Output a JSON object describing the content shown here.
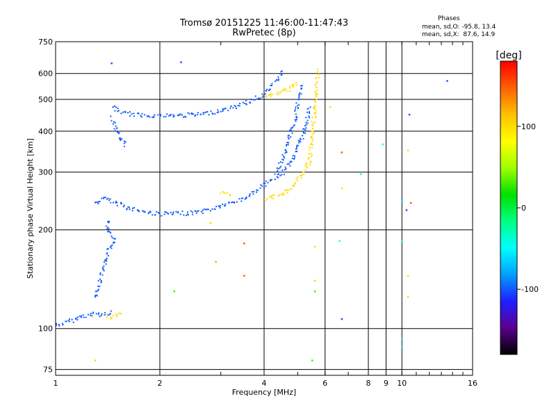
{
  "chart_data": {
    "type": "scatter",
    "title": "Tromsø 20151225 11:46:00-11:47:43",
    "subtitle": "RwPretec (8p)",
    "xlabel": "Frequency [MHz]",
    "ylabel": "Stationary phase Virtual Height [km]",
    "xscale": "log",
    "yscale": "log",
    "xlim": [
      1,
      16
    ],
    "ylim": [
      72,
      750
    ],
    "xticks": [
      1,
      2,
      4,
      6,
      8,
      10,
      16
    ],
    "xtick_labels": [
      "1",
      "2",
      "4",
      "6",
      "8",
      "10",
      "16"
    ],
    "xminor_ticks": [
      9
    ],
    "xminor_labels": [
      "9"
    ],
    "yticks": [
      75,
      100,
      200,
      300,
      400,
      500,
      600,
      750
    ],
    "ytick_labels": [
      "75",
      "100",
      "200",
      "300",
      "400",
      "500",
      "600",
      "750"
    ],
    "grid": true,
    "phase_stats": {
      "heading": "Phases",
      "line_o": "mean, sd,O: -95.8, 13.4",
      "line_x": "mean, sd,X:  87.6, 14.9"
    },
    "colorbar": {
      "label": "[deg]",
      "range": [
        -180,
        180
      ],
      "ticks": [
        100,
        0,
        -100
      ],
      "tick_labels": [
        "100",
        "0",
        "-100"
      ],
      "palette": [
        "#000000",
        "#5a0090",
        "#2020ff",
        "#00a0ff",
        "#00ffff",
        "#00ff80",
        "#00e000",
        "#a0ff00",
        "#ffff00",
        "#ffc000",
        "#ff6000",
        "#ff0000"
      ]
    },
    "traces": [
      {
        "name": "",
        "phase": -100,
        "points": [
          [
            1.0,
            103
          ],
          [
            1.05,
            104
          ],
          [
            1.1,
            106
          ],
          [
            1.15,
            108
          ],
          [
            1.2,
            110
          ],
          [
            1.25,
            110
          ],
          [
            1.3,
            112
          ],
          [
            1.35,
            110
          ],
          [
            1.4,
            112
          ],
          [
            1.45,
            112
          ]
        ]
      },
      {
        "name": "",
        "phase": -100,
        "points": [
          [
            1.3,
            125
          ],
          [
            1.33,
            135
          ],
          [
            1.35,
            145
          ],
          [
            1.38,
            155
          ],
          [
            1.4,
            165
          ],
          [
            1.42,
            175
          ],
          [
            1.45,
            180
          ],
          [
            1.47,
            190
          ],
          [
            1.4,
            200
          ],
          [
            1.42,
            215
          ]
        ]
      },
      {
        "name": "",
        "phase": -100,
        "points": [
          [
            1.3,
            240
          ],
          [
            1.35,
            250
          ],
          [
            1.4,
            250
          ],
          [
            1.45,
            245
          ],
          [
            1.5,
            240
          ],
          [
            1.55,
            240
          ],
          [
            1.6,
            235
          ],
          [
            1.7,
            232
          ],
          [
            1.8,
            228
          ],
          [
            1.9,
            226
          ],
          [
            2.0,
            225
          ],
          [
            2.2,
            225
          ],
          [
            2.4,
            226
          ],
          [
            2.6,
            228
          ],
          [
            2.8,
            232
          ],
          [
            3.0,
            238
          ],
          [
            3.3,
            245
          ],
          [
            3.6,
            255
          ],
          [
            3.9,
            270
          ],
          [
            4.2,
            285
          ],
          [
            4.5,
            300
          ],
          [
            4.8,
            330
          ],
          [
            5.0,
            360
          ],
          [
            5.2,
            400
          ],
          [
            5.3,
            440
          ],
          [
            5.4,
            480
          ]
        ]
      },
      {
        "name": "",
        "phase": -100,
        "points": [
          [
            1.45,
            480
          ],
          [
            1.5,
            465
          ],
          [
            1.6,
            455
          ],
          [
            1.7,
            450
          ],
          [
            1.8,
            450
          ],
          [
            2.0,
            448
          ],
          [
            2.2,
            448
          ],
          [
            2.4,
            450
          ],
          [
            2.6,
            452
          ],
          [
            2.8,
            458
          ],
          [
            3.0,
            465
          ],
          [
            3.3,
            478
          ],
          [
            3.6,
            495
          ],
          [
            3.9,
            515
          ],
          [
            4.2,
            550
          ],
          [
            4.4,
            590
          ],
          [
            4.5,
            620
          ]
        ]
      },
      {
        "name": "",
        "phase": -100,
        "points": [
          [
            1.45,
            440
          ],
          [
            1.5,
            400
          ],
          [
            1.55,
            375
          ],
          [
            1.6,
            360
          ]
        ]
      },
      {
        "name": "",
        "phase": -100,
        "points": [
          [
            4.3,
            300
          ],
          [
            4.5,
            330
          ],
          [
            4.7,
            380
          ],
          [
            4.9,
            440
          ],
          [
            5.0,
            500
          ],
          [
            5.1,
            560
          ]
        ]
      },
      {
        "name": "",
        "phase": 100,
        "points": [
          [
            4.0,
            250
          ],
          [
            4.2,
            252
          ],
          [
            4.4,
            258
          ],
          [
            4.6,
            262
          ],
          [
            4.8,
            270
          ],
          [
            5.0,
            285
          ],
          [
            5.2,
            300
          ],
          [
            5.4,
            330
          ],
          [
            5.5,
            400
          ],
          [
            5.6,
            480
          ],
          [
            5.65,
            560
          ],
          [
            5.7,
            620
          ]
        ]
      },
      {
        "name": "",
        "phase": 100,
        "points": [
          [
            3.0,
            260
          ],
          [
            3.2,
            258
          ]
        ]
      },
      {
        "name": "",
        "phase": 100,
        "points": [
          [
            4.0,
            510
          ],
          [
            4.2,
            520
          ],
          [
            4.4,
            525
          ],
          [
            4.7,
            540
          ],
          [
            5.0,
            570
          ]
        ]
      },
      {
        "name": "",
        "phase": 100,
        "points": [
          [
            1.4,
            110
          ],
          [
            1.45,
            108
          ],
          [
            1.5,
            110
          ],
          [
            1.55,
            112
          ]
        ]
      }
    ],
    "isolated_points": [
      {
        "x": 1.45,
        "y": 645,
        "phase": -100
      },
      {
        "x": 2.3,
        "y": 650,
        "phase": -100
      },
      {
        "x": 13.5,
        "y": 570,
        "phase": -100
      },
      {
        "x": 10.5,
        "y": 450,
        "phase": -100
      },
      {
        "x": 8.8,
        "y": 365,
        "phase": -50
      },
      {
        "x": 7.6,
        "y": 296,
        "phase": -50
      },
      {
        "x": 6.7,
        "y": 345,
        "phase": 150
      },
      {
        "x": 6.7,
        "y": 268,
        "phase": 100
      },
      {
        "x": 6.6,
        "y": 185,
        "phase": -50
      },
      {
        "x": 6.7,
        "y": 107,
        "phase": -100
      },
      {
        "x": 10.0,
        "y": 245,
        "phase": -60
      },
      {
        "x": 10.3,
        "y": 230,
        "phase": -100
      },
      {
        "x": 10.6,
        "y": 242,
        "phase": 150
      },
      {
        "x": 10.4,
        "y": 350,
        "phase": 100
      },
      {
        "x": 10.4,
        "y": 145,
        "phase": 100
      },
      {
        "x": 10.4,
        "y": 125,
        "phase": 100
      },
      {
        "x": 10.0,
        "y": 185,
        "phase": -50
      },
      {
        "x": 10.0,
        "y": 93,
        "phase": -50
      },
      {
        "x": 10.0,
        "y": 88,
        "phase": -50
      },
      {
        "x": 3.5,
        "y": 182,
        "phase": 150
      },
      {
        "x": 3.5,
        "y": 145,
        "phase": 150
      },
      {
        "x": 2.9,
        "y": 160,
        "phase": 120
      },
      {
        "x": 2.2,
        "y": 130,
        "phase": 30
      },
      {
        "x": 5.6,
        "y": 178,
        "phase": 100
      },
      {
        "x": 5.6,
        "y": 140,
        "phase": 50
      },
      {
        "x": 5.6,
        "y": 130,
        "phase": 30
      },
      {
        "x": 5.5,
        "y": 80,
        "phase": 30
      },
      {
        "x": 1.3,
        "y": 80,
        "phase": 100
      },
      {
        "x": 2.8,
        "y": 210,
        "phase": 100
      },
      {
        "x": 6.2,
        "y": 475,
        "phase": 100
      }
    ]
  }
}
